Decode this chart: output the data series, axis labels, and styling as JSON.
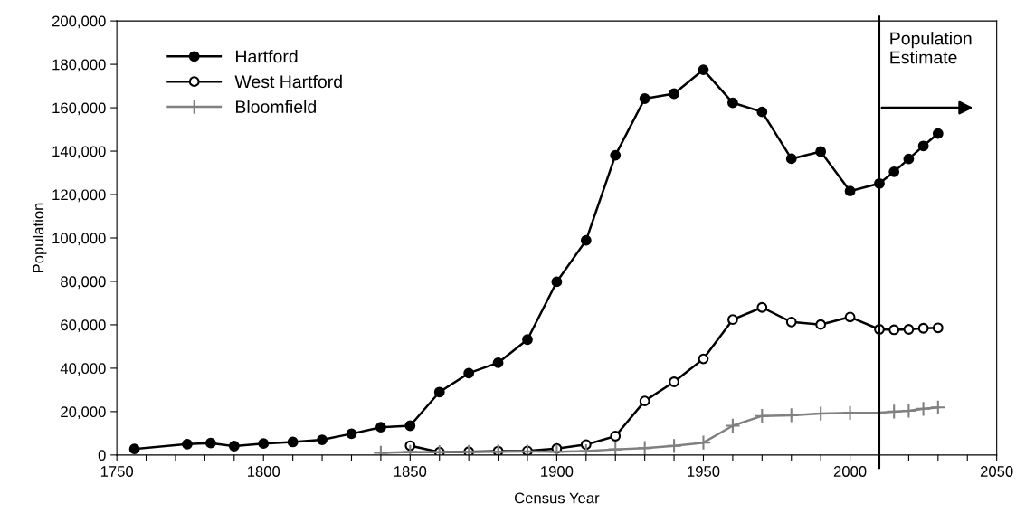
{
  "chart_data": {
    "type": "line",
    "xlabel": "Census Year",
    "ylabel": "Population",
    "xlim": [
      1750,
      2050
    ],
    "ylim": [
      0,
      200000
    ],
    "xticks": [
      1750,
      {
        "value": 1760,
        "label": null
      },
      {
        "value": 1770,
        "label": null
      },
      {
        "value": 1780,
        "label": null
      },
      {
        "value": 1790,
        "label": null
      },
      1800,
      {
        "value": 1810,
        "label": null
      },
      {
        "value": 1820,
        "label": null
      },
      {
        "value": 1830,
        "label": null
      },
      {
        "value": 1840,
        "label": null
      },
      1850,
      {
        "value": 1860,
        "label": null
      },
      {
        "value": 1870,
        "label": null
      },
      {
        "value": 1880,
        "label": null
      },
      {
        "value": 1890,
        "label": null
      },
      1900,
      {
        "value": 1910,
        "label": null
      },
      {
        "value": 1920,
        "label": null
      },
      {
        "value": 1930,
        "label": null
      },
      {
        "value": 1940,
        "label": null
      },
      1950,
      {
        "value": 1960,
        "label": null
      },
      {
        "value": 1970,
        "label": null
      },
      {
        "value": 1980,
        "label": null
      },
      {
        "value": 1990,
        "label": null
      },
      2000,
      {
        "value": 2010,
        "label": null
      },
      {
        "value": 2020,
        "label": null
      },
      {
        "value": 2030,
        "label": null
      },
      {
        "value": 2040,
        "label": null
      },
      2050
    ],
    "yticks": [
      0,
      {
        "value": 20000,
        "label": "20,000"
      },
      {
        "value": 40000,
        "label": "40,000"
      },
      {
        "value": 60000,
        "label": "60,000"
      },
      {
        "value": 80000,
        "label": "80,000"
      },
      {
        "value": 100000,
        "label": "100,000"
      },
      {
        "value": 120000,
        "label": "120,000"
      },
      {
        "value": 140000,
        "label": "140,000"
      },
      {
        "value": 160000,
        "label": "160,000"
      },
      {
        "value": 180000,
        "label": "180,000"
      },
      {
        "value": 200000,
        "label": "200,000"
      }
    ],
    "grid": false,
    "legend": "top left",
    "line_style": "solid",
    "ref_lines": [
      {
        "axis": "x",
        "value": 2010,
        "label": "Population\nEstimate",
        "color": "#000000"
      }
    ],
    "series": [
      {
        "name": "Hartford",
        "color": "#000000",
        "marker": "circle",
        "x": [
          1756,
          1774,
          1782,
          1790,
          1800,
          1810,
          1820,
          1830,
          1840,
          1850,
          1860,
          1870,
          1880,
          1890,
          1900,
          1910,
          1920,
          1930,
          1940,
          1950,
          1960,
          1970,
          1980,
          1990,
          2000,
          2010,
          2015,
          2020,
          2025,
          2030
        ],
        "values": [
          2800,
          5000,
          5500,
          4100,
          5300,
          6000,
          7000,
          9800,
          12800,
          13500,
          29000,
          37700,
          42500,
          53200,
          79800,
          98900,
          138100,
          164200,
          166500,
          177500,
          162300,
          158100,
          136500,
          139800,
          121600,
          125100,
          130500,
          136400,
          142400,
          148100
        ]
      },
      {
        "name": "West Hartford",
        "color": "#000000",
        "marker": "circle",
        "x": [
          1850,
          1860,
          1870,
          1880,
          1890,
          1900,
          1910,
          1920,
          1930,
          1940,
          1950,
          1960,
          1970,
          1980,
          1990,
          2000,
          2010,
          2015,
          2020,
          2025,
          2030
        ],
        "values": [
          4300,
          1300,
          1500,
          1800,
          1900,
          3000,
          4800,
          8700,
          24900,
          33700,
          44300,
          62400,
          68000,
          61300,
          60100,
          63600,
          57900,
          57700,
          57900,
          58400,
          58600
        ]
      },
      {
        "name": "Bloomfield",
        "color": "#808080",
        "marker": "cross",
        "x": [
          1840,
          1850,
          1860,
          1870,
          1880,
          1890,
          1900,
          1910,
          1920,
          1930,
          1940,
          1950,
          1960,
          1970,
          1980,
          1990,
          2000,
          2010,
          2015,
          2020,
          2025,
          2030
        ],
        "values": [
          1000,
          1400,
          1300,
          1400,
          1500,
          1600,
          1500,
          1800,
          2600,
          3200,
          4200,
          5700,
          13500,
          18000,
          18300,
          19100,
          19400,
          19500,
          20000,
          20400,
          21300,
          21900
        ]
      }
    ]
  }
}
